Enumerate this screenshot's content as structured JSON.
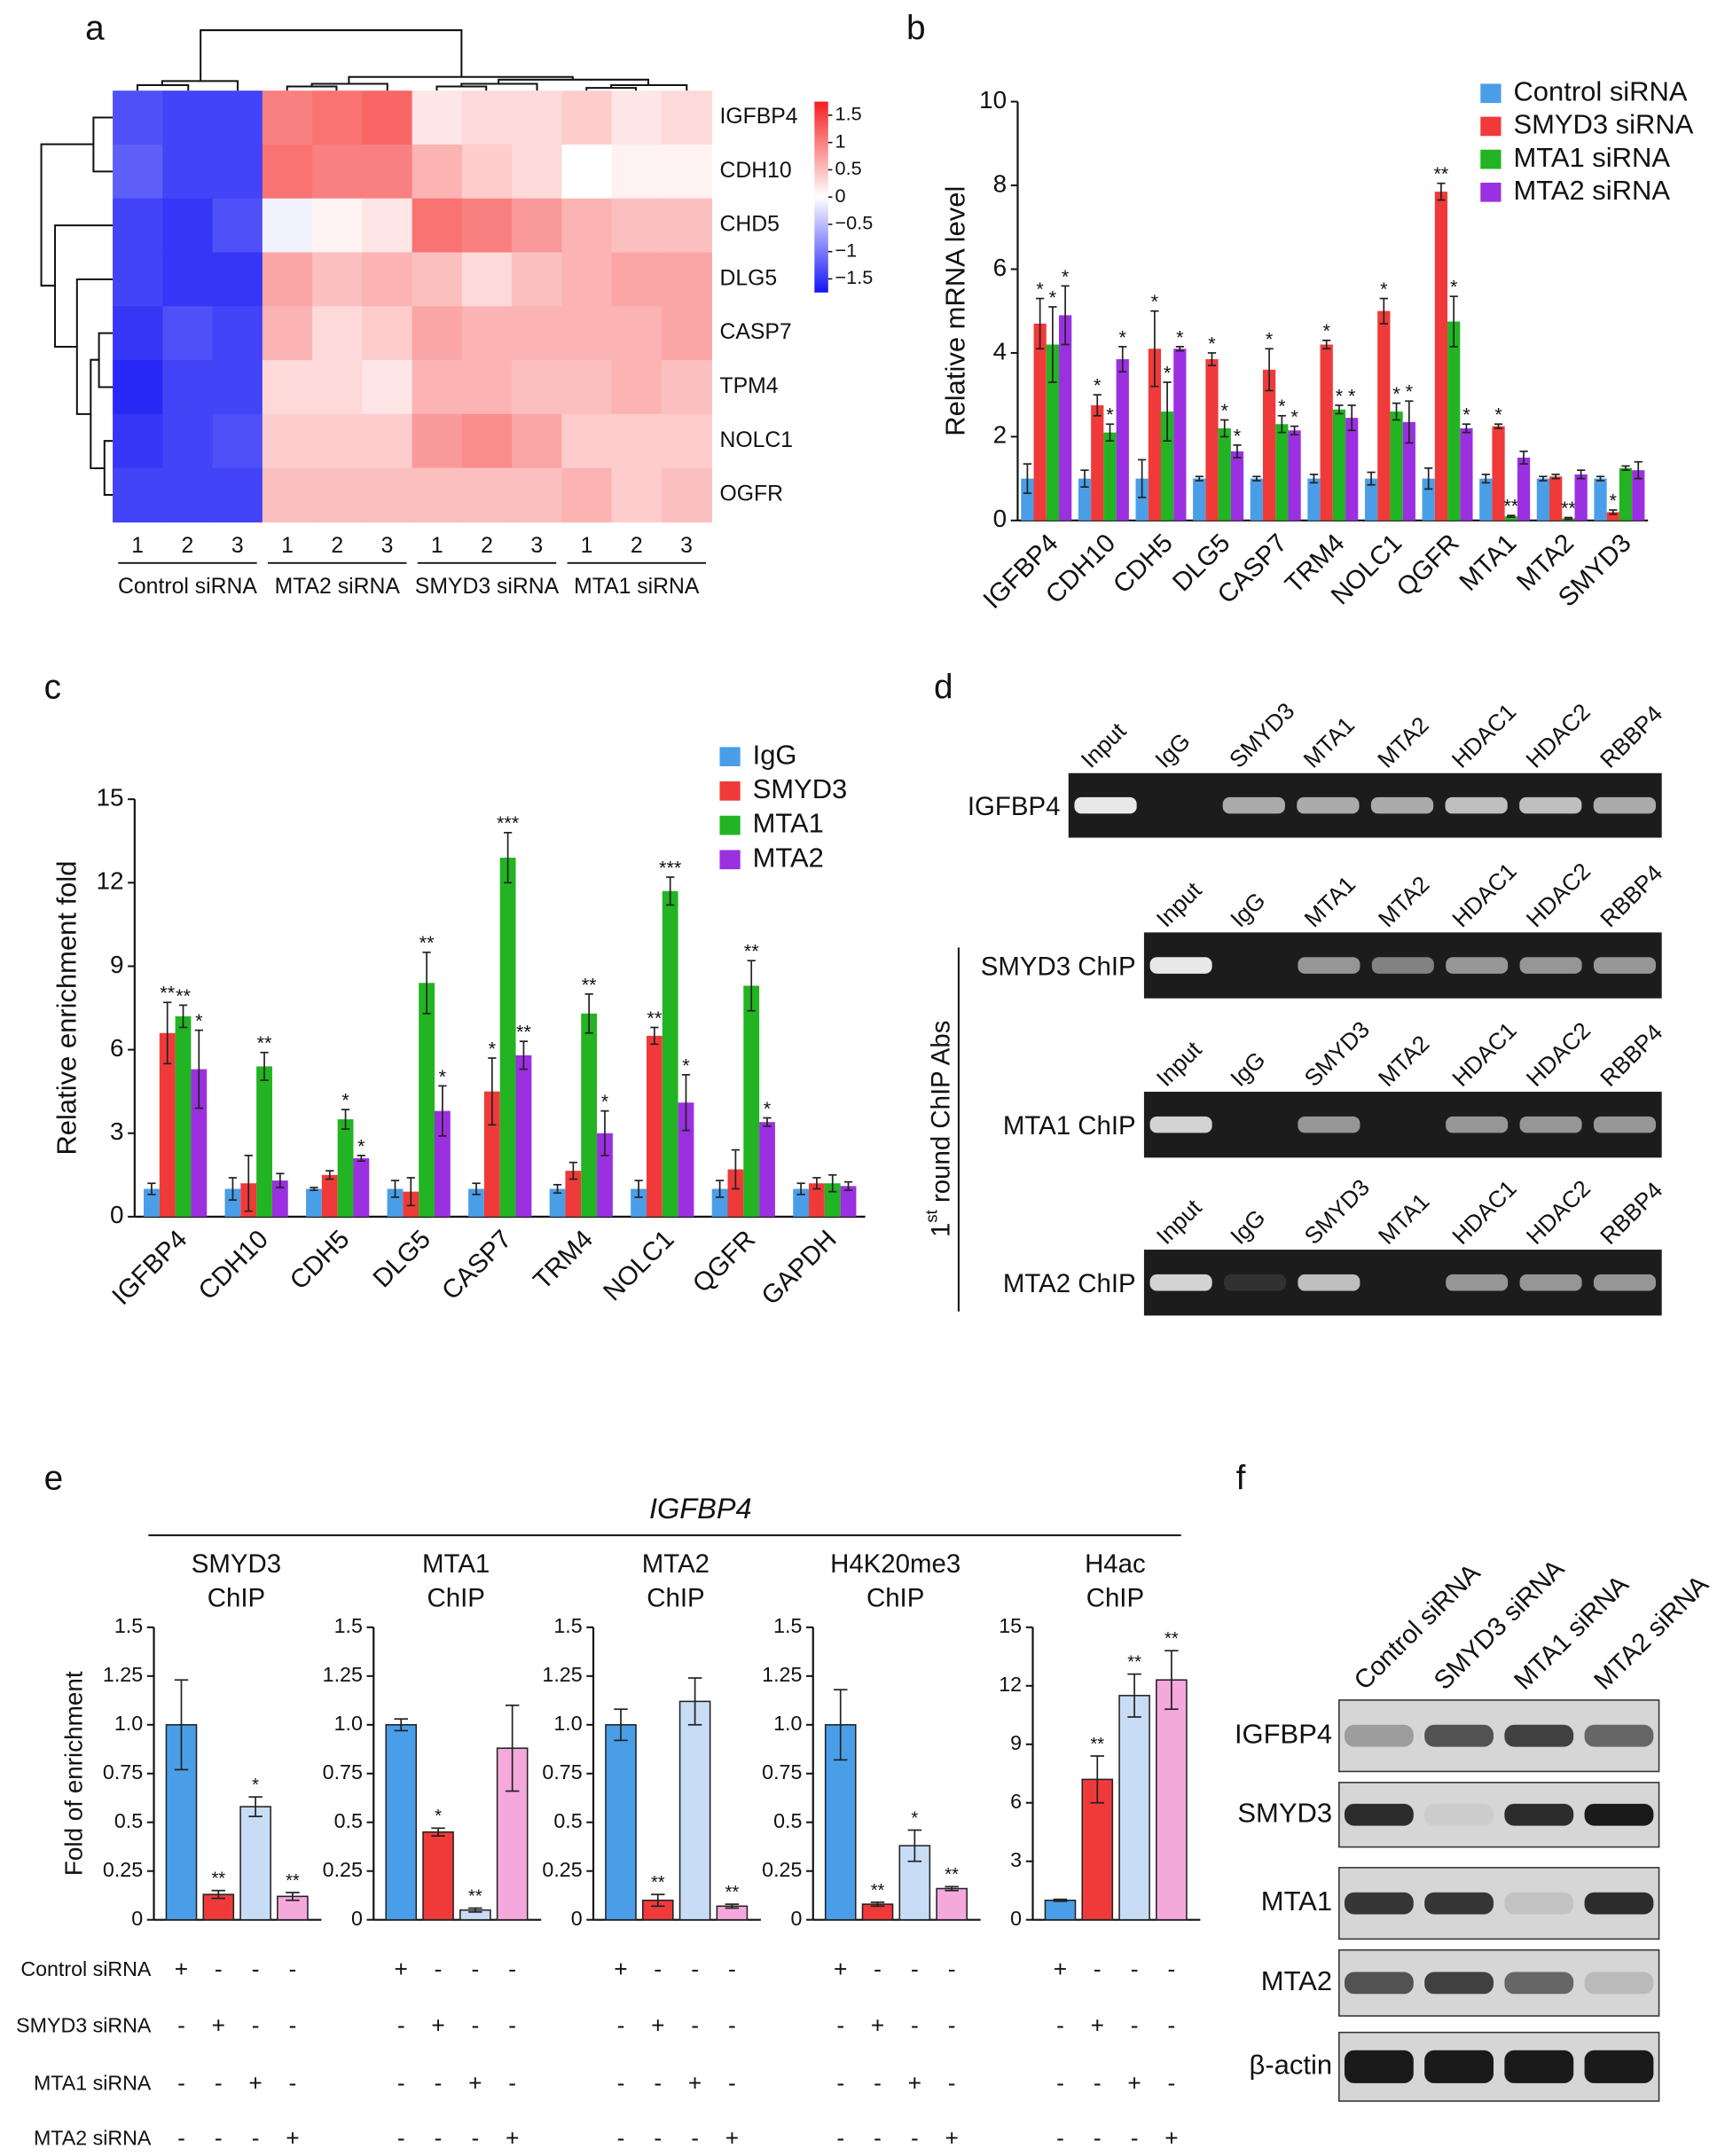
{
  "panel_labels": [
    "a",
    "b",
    "c",
    "d",
    "e",
    "f"
  ],
  "chart_data": [
    {
      "type": "heatmap",
      "rows": [
        "IGFBP4",
        "CDH10",
        "CHD5",
        "DLG5",
        "CASP7",
        "TPM4",
        "NOLC1",
        "OGFR"
      ],
      "groups": [
        "Control siRNA",
        "MTA2 siRNA",
        "SMYD3 siRNA",
        "MTA1 siRNA"
      ],
      "columns": [
        [
          "1",
          "2",
          "3"
        ],
        [
          "1",
          "2",
          "3"
        ],
        [
          "1",
          "2",
          "3"
        ],
        [
          "1",
          "2",
          "3"
        ]
      ],
      "values": [
        [
          -1.3,
          -1.4,
          -1.4,
          1.0,
          1.1,
          1.2,
          0.2,
          0.3,
          0.3,
          0.4,
          0.2,
          0.3
        ],
        [
          -1.2,
          -1.4,
          -1.4,
          1.1,
          1.0,
          1.0,
          0.6,
          0.4,
          0.3,
          0.0,
          0.1,
          0.1
        ],
        [
          -1.4,
          -1.5,
          -1.3,
          -0.1,
          0.1,
          0.2,
          1.1,
          1.0,
          0.8,
          0.6,
          0.5,
          0.5
        ],
        [
          -1.4,
          -1.5,
          -1.5,
          0.7,
          0.5,
          0.6,
          0.5,
          0.3,
          0.5,
          0.6,
          0.7,
          0.7
        ],
        [
          -1.5,
          -1.3,
          -1.4,
          0.6,
          0.3,
          0.4,
          0.7,
          0.6,
          0.6,
          0.6,
          0.6,
          0.7
        ],
        [
          -1.6,
          -1.4,
          -1.4,
          0.3,
          0.3,
          0.2,
          0.6,
          0.6,
          0.5,
          0.5,
          0.6,
          0.5
        ],
        [
          -1.5,
          -1.4,
          -1.3,
          0.4,
          0.4,
          0.4,
          0.8,
          0.9,
          0.7,
          0.4,
          0.4,
          0.4
        ],
        [
          -1.4,
          -1.4,
          -1.4,
          0.5,
          0.5,
          0.5,
          0.5,
          0.5,
          0.5,
          0.6,
          0.4,
          0.5
        ]
      ],
      "zlim": [
        -1.75,
        1.75
      ],
      "zticks": [
        1.5,
        1,
        0.5,
        0,
        {
          "value": -0.5,
          "label": "−0.5"
        },
        {
          "value": -1,
          "label": "−1"
        },
        {
          "value": -1.5,
          "label": "−1.5"
        }
      ],
      "colors": [
        "#1414f5",
        "#ffffff",
        "#f52020"
      ]
    },
    {
      "type": "bar",
      "ylabel": "Relative mRNA level",
      "categories": [
        "IGFBP4",
        "CDH10",
        "CDH5",
        "DLG5",
        "CASP7",
        "TRM4",
        "NOLC1",
        "QGFR",
        "MTA1",
        "MTA2",
        "SMYD3"
      ],
      "ylim": [
        0,
        10
      ],
      "yticks": [
        0,
        2,
        4,
        6,
        8,
        10
      ],
      "legend": "upper right",
      "series": [
        {
          "name": "Control siRNA",
          "color": "#4a9ee8",
          "values": [
            1.0,
            1.0,
            1.0,
            1.0,
            1.0,
            1.0,
            1.0,
            1.0,
            1.0,
            1.0,
            1.0
          ],
          "errors": [
            0.35,
            0.2,
            0.45,
            0.05,
            0.05,
            0.1,
            0.15,
            0.25,
            0.1,
            0.05,
            0.05
          ],
          "labels": [
            null,
            null,
            null,
            null,
            null,
            null,
            null,
            null,
            null,
            null,
            null
          ]
        },
        {
          "name": "SMYD3 siRNA",
          "color": "#f03a3a",
          "values": [
            4.7,
            2.75,
            4.1,
            3.85,
            3.6,
            4.2,
            5.0,
            7.85,
            2.25,
            1.05,
            0.2
          ],
          "errors": [
            0.6,
            0.25,
            0.9,
            0.15,
            0.5,
            0.1,
            0.3,
            0.2,
            0.05,
            0.05,
            0.05
          ],
          "labels": [
            "*",
            "*",
            "*",
            "*",
            "*",
            "*",
            "*",
            "**",
            "*",
            null,
            "*"
          ]
        },
        {
          "name": "MTA1 siRNA",
          "color": "#22b422",
          "values": [
            4.2,
            2.1,
            2.6,
            2.2,
            2.3,
            2.65,
            2.6,
            4.75,
            0.1,
            0.05,
            1.25
          ],
          "errors": [
            0.9,
            0.2,
            0.7,
            0.2,
            0.2,
            0.1,
            0.2,
            0.6,
            0.02,
            0.02,
            0.05
          ],
          "labels": [
            "*",
            "*",
            "*",
            "*",
            "*",
            "*",
            "*",
            "*",
            "**",
            "**",
            null
          ]
        },
        {
          "name": "MTA2 siRNA",
          "color": "#9b30e0",
          "values": [
            4.9,
            3.85,
            4.1,
            1.65,
            2.15,
            2.45,
            2.35,
            2.2,
            1.5,
            1.1,
            1.2
          ],
          "errors": [
            0.7,
            0.3,
            0.05,
            0.15,
            0.1,
            0.3,
            0.5,
            0.1,
            0.15,
            0.1,
            0.2
          ],
          "labels": [
            "*",
            "*",
            "*",
            "*",
            "*",
            "*",
            "*",
            "*",
            null,
            null,
            null
          ]
        }
      ]
    },
    {
      "type": "bar",
      "ylabel": "Relative enrichment fold",
      "categories": [
        "IGFBP4",
        "CDH10",
        "CDH5",
        "DLG5",
        "CASP7",
        "TRM4",
        "NOLC1",
        "QGFR",
        "GAPDH"
      ],
      "ylim": [
        0,
        15
      ],
      "yticks": [
        0,
        3,
        6,
        9,
        12,
        15
      ],
      "legend": "upper right",
      "series": [
        {
          "name": "IgG",
          "color": "#4a9ee8",
          "values": [
            1.0,
            1.0,
            1.0,
            1.0,
            1.0,
            1.0,
            1.0,
            1.0,
            1.0
          ],
          "errors": [
            0.2,
            0.4,
            0.05,
            0.3,
            0.2,
            0.15,
            0.3,
            0.3,
            0.2
          ],
          "labels": [
            null,
            null,
            null,
            null,
            null,
            null,
            null,
            null,
            null
          ]
        },
        {
          "name": "SMYD3",
          "color": "#f03a3a",
          "values": [
            6.6,
            1.2,
            1.5,
            0.9,
            4.5,
            1.65,
            6.5,
            1.7,
            1.2
          ],
          "errors": [
            1.1,
            1.0,
            0.15,
            0.5,
            1.2,
            0.3,
            0.3,
            0.7,
            0.2
          ],
          "labels": [
            "**",
            null,
            null,
            null,
            "*",
            null,
            "**",
            null,
            null
          ]
        },
        {
          "name": "MTA1",
          "color": "#22b422",
          "values": [
            7.2,
            5.4,
            3.5,
            8.4,
            12.9,
            7.3,
            11.7,
            8.3,
            1.2
          ],
          "errors": [
            0.4,
            0.5,
            0.35,
            1.1,
            0.9,
            0.7,
            0.5,
            0.9,
            0.3
          ],
          "labels": [
            "**",
            "**",
            "*",
            "**",
            "***",
            "**",
            "***",
            "**",
            null
          ]
        },
        {
          "name": "MTA2",
          "color": "#9b30e0",
          "values": [
            5.3,
            1.3,
            2.1,
            3.8,
            5.8,
            3.0,
            4.1,
            3.4,
            1.1
          ],
          "errors": [
            1.4,
            0.25,
            0.1,
            0.9,
            0.5,
            0.8,
            1.0,
            0.15,
            0.15
          ],
          "labels": [
            "*",
            null,
            "*",
            "*",
            "**",
            "*",
            "*",
            "*",
            null
          ]
        }
      ]
    },
    {
      "type": "bar",
      "title": [
        "SMYD3",
        "ChIP"
      ],
      "ylabel": "Fold of enrichment",
      "ylim": [
        0,
        1.5
      ],
      "yticks": [
        0,
        0.25,
        0.5,
        0.75,
        {
          "value": 1,
          "label": "1.0"
        },
        1.25,
        1.5
      ],
      "colors": [
        "#4a9ee8",
        "#f03a3a",
        "#c8dcf5",
        "#f5a8dc"
      ],
      "values": [
        1.0,
        0.13,
        0.58,
        0.12
      ],
      "errors": [
        0.23,
        0.02,
        0.05,
        0.02
      ],
      "labels": [
        null,
        "**",
        "*",
        "**"
      ]
    },
    {
      "type": "bar",
      "title": [
        "MTA1",
        "ChIP"
      ],
      "ylim": [
        0,
        1.5
      ],
      "yticks": [
        0,
        0.25,
        0.5,
        0.75,
        {
          "value": 1,
          "label": "1.0"
        },
        1.25,
        1.5
      ],
      "colors": [
        "#4a9ee8",
        "#f03a3a",
        "#c8dcf5",
        "#f5a8dc"
      ],
      "values": [
        1.0,
        0.45,
        0.05,
        0.88
      ],
      "errors": [
        0.03,
        0.02,
        0.01,
        0.22
      ],
      "labels": [
        null,
        "*",
        "**",
        null
      ]
    },
    {
      "type": "bar",
      "title": [
        "MTA2",
        "ChIP"
      ],
      "ylim": [
        0,
        1.5
      ],
      "yticks": [
        0,
        0.25,
        0.5,
        0.75,
        {
          "value": 1,
          "label": "1.0"
        },
        1.25,
        1.5
      ],
      "colors": [
        "#4a9ee8",
        "#f03a3a",
        "#c8dcf5",
        "#f5a8dc"
      ],
      "values": [
        1.0,
        0.1,
        1.12,
        0.07
      ],
      "errors": [
        0.08,
        0.03,
        0.12,
        0.01
      ],
      "labels": [
        null,
        "**",
        null,
        "**"
      ]
    },
    {
      "type": "bar",
      "title": [
        "H4K20me3",
        "ChIP"
      ],
      "ylim": [
        0,
        1.5
      ],
      "yticks": [
        0,
        0.25,
        0.5,
        0.75,
        {
          "value": 1,
          "label": "1.0"
        },
        1.25,
        1.5
      ],
      "colors": [
        "#4a9ee8",
        "#f03a3a",
        "#c8dcf5",
        "#f5a8dc"
      ],
      "values": [
        1.0,
        0.08,
        0.38,
        0.16
      ],
      "errors": [
        0.18,
        0.01,
        0.08,
        0.01
      ],
      "labels": [
        null,
        "**",
        "*",
        "**"
      ]
    },
    {
      "type": "bar",
      "title": [
        "H4ac",
        "ChIP"
      ],
      "ylim": [
        0,
        15
      ],
      "yticks": [
        0,
        3,
        6,
        9,
        12,
        15
      ],
      "colors": [
        "#4a9ee8",
        "#f03a3a",
        "#c8dcf5",
        "#f5a8dc"
      ],
      "values": [
        1.0,
        7.2,
        11.5,
        12.3
      ],
      "errors": [
        0.05,
        1.2,
        1.1,
        1.5
      ],
      "labels": [
        null,
        "**",
        "**",
        "**"
      ]
    }
  ],
  "panel_e": {
    "title": "IGFBP4",
    "conditions": [
      "Control siRNA",
      "SMYD3 siRNA",
      "MTA1 siRNA",
      "MTA2 siRNA"
    ],
    "signs": [
      [
        "+",
        "-",
        "-",
        "-",
        "+",
        "-",
        "-",
        "-",
        "+",
        "-",
        "-",
        "-",
        "+",
        "-",
        "-",
        "-",
        "+",
        "-",
        "-",
        "-"
      ],
      [
        "-",
        "+",
        "-",
        "-",
        "-",
        "+",
        "-",
        "-",
        "-",
        "+",
        "-",
        "-",
        "-",
        "+",
        "-",
        "-",
        "-",
        "+",
        "-",
        "-"
      ],
      [
        "-",
        "-",
        "+",
        "-",
        "-",
        "-",
        "+",
        "-",
        "-",
        "-",
        "+",
        "-",
        "-",
        "-",
        "+",
        "-",
        "-",
        "-",
        "+",
        "-"
      ],
      [
        "-",
        "-",
        "-",
        "+",
        "-",
        "-",
        "-",
        "+",
        "-",
        "-",
        "-",
        "+",
        "-",
        "-",
        "-",
        "+",
        "-",
        "-",
        "-",
        "+"
      ]
    ]
  },
  "gels": [
    {
      "label": "IGFBP4",
      "lanes": [
        "Input",
        "IgG",
        "SMYD3",
        "MTA1",
        "MTA2",
        "HDAC1",
        "HDAC2",
        "RBBP4"
      ]
    },
    {
      "label": "SMYD3 ChIP",
      "lanes": [
        "Input",
        "IgG",
        "MTA1",
        "MTA2",
        "HDAC1",
        "HDAC2",
        "RBBP4"
      ]
    },
    {
      "label": "MTA1 ChIP",
      "lanes": [
        "Input",
        "IgG",
        "SMYD3",
        "MTA2",
        "HDAC1",
        "HDAC2",
        "RBBP4"
      ]
    },
    {
      "label": "MTA2 ChIP",
      "lanes": [
        "Input",
        "IgG",
        "SMYD3",
        "MTA1",
        "HDAC1",
        "HDAC2",
        "RBBP4"
      ]
    }
  ],
  "gel_axis_label": {
    "number": "1",
    "suffix": "st",
    "text": " round ChIP Abs"
  },
  "western": {
    "lanes": [
      "Control siRNA",
      "SMYD3 siRNA",
      "MTA1 siRNA",
      "MTA2 siRNA"
    ],
    "rows": [
      "IGFBP4",
      "SMYD3",
      "MTA1",
      "MTA2",
      "β-actin"
    ]
  }
}
